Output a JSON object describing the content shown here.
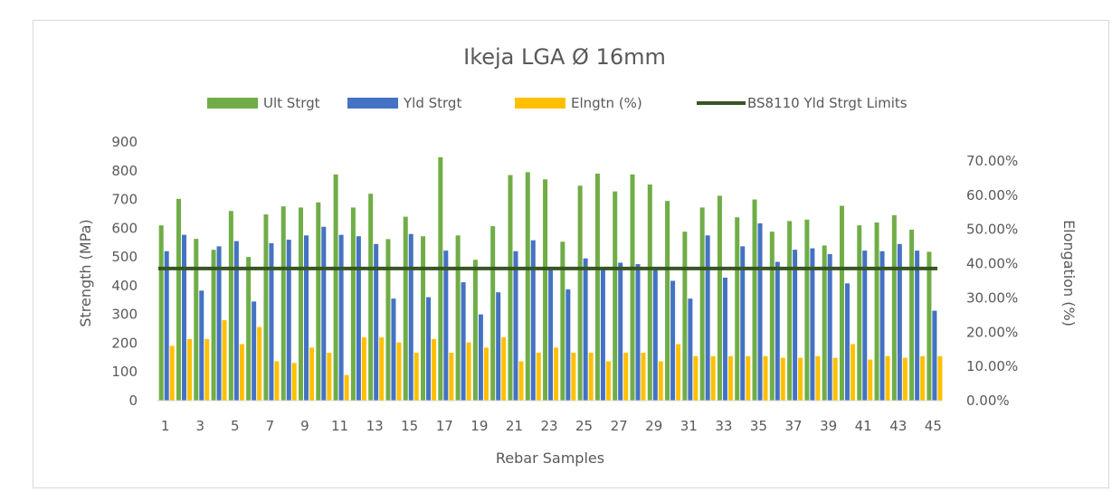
{
  "chart_data": {
    "type": "bar",
    "title": "Ikeja LGA Ø 16mm",
    "xlabel": "Rebar Samples",
    "ylabel": "Strength (MPa)",
    "y2label": "Elongation (%)",
    "ylim": [
      0,
      900
    ],
    "y2lim": [
      0,
      0.7
    ],
    "yticks": [
      "0",
      "100",
      "200",
      "300",
      "400",
      "500",
      "600",
      "700",
      "800",
      "900"
    ],
    "y2ticks": [
      "0.00%",
      "10.00%",
      "20.00%",
      "30.00%",
      "40.00%",
      "50.00%",
      "60.00%",
      "70.00%"
    ],
    "categories": [
      "1",
      "2",
      "3",
      "4",
      "5",
      "6",
      "7",
      "8",
      "9",
      "10",
      "11",
      "12",
      "13",
      "14",
      "15",
      "16",
      "17",
      "18",
      "19",
      "20",
      "21",
      "22",
      "23",
      "24",
      "25",
      "26",
      "27",
      "28",
      "29",
      "30",
      "31",
      "32",
      "33",
      "34",
      "35",
      "36",
      "37",
      "38",
      "39",
      "40",
      "41",
      "42",
      "43",
      "44",
      "45"
    ],
    "xtick_labels": [
      "1",
      "3",
      "5",
      "7",
      "9",
      "11",
      "13",
      "15",
      "17",
      "19",
      "21",
      "23",
      "25",
      "27",
      "29",
      "31",
      "33",
      "35",
      "37",
      "39",
      "41",
      "43",
      "45"
    ],
    "legend_position": "top",
    "series": [
      {
        "name": "Ult Strgt",
        "axis": "left",
        "color": "#70ad47",
        "values": [
          610,
          702,
          563,
          525,
          660,
          500,
          648,
          676,
          672,
          690,
          787,
          672,
          720,
          562,
          640,
          572,
          847,
          575,
          490,
          607,
          785,
          795,
          770,
          553,
          748,
          790,
          728,
          787,
          752,
          695,
          588,
          672,
          713,
          638,
          700,
          588,
          625,
          630,
          540,
          678,
          610,
          620,
          645,
          595,
          518
        ]
      },
      {
        "name": "Yld Strgt",
        "axis": "left",
        "color": "#4472c4",
        "values": [
          520,
          577,
          383,
          537,
          555,
          345,
          548,
          560,
          575,
          605,
          577,
          572,
          545,
          355,
          580,
          360,
          522,
          412,
          300,
          377,
          520,
          558,
          460,
          387,
          495,
          460,
          480,
          475,
          460,
          417,
          355,
          575,
          428,
          537,
          617,
          483,
          525,
          530,
          510,
          408,
          522,
          520,
          545,
          522,
          313
        ]
      },
      {
        "name": "Elngtn (%)",
        "axis": "right",
        "color": "#ffc000",
        "values": [
          0.16,
          0.18,
          0.18,
          0.235,
          0.165,
          0.215,
          0.115,
          0.11,
          0.155,
          0.14,
          0.075,
          0.185,
          0.185,
          0.17,
          0.14,
          0.18,
          0.14,
          0.17,
          0.155,
          0.185,
          0.115,
          0.14,
          0.155,
          0.14,
          0.14,
          0.115,
          0.14,
          0.14,
          0.115,
          0.165,
          0.13,
          0.13,
          0.13,
          0.13,
          0.13,
          0.125,
          0.125,
          0.13,
          0.125,
          0.165,
          0.12,
          0.13,
          0.125,
          0.13,
          0.13
        ]
      },
      {
        "name": "BS8110 Yld Strgt Limits",
        "axis": "left",
        "type": "line",
        "color": "#375623",
        "value": 460
      }
    ]
  }
}
